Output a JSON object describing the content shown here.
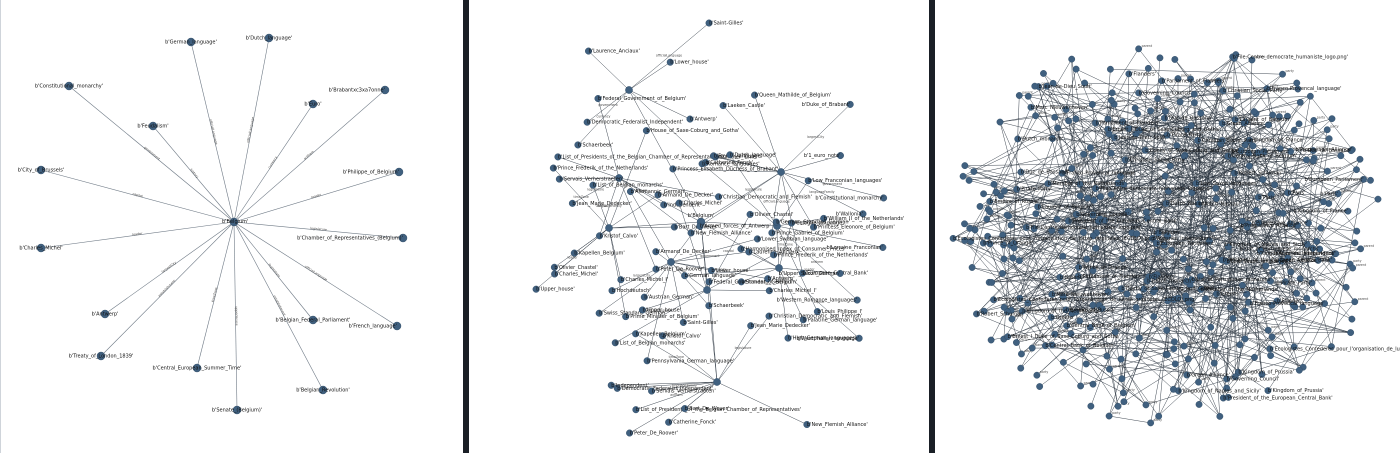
{
  "panels": [
    {
      "name": "panel-graph-depth-1",
      "hub_label": "b'Belgium'",
      "nodes": [
        "b'German_language'",
        "b'Dutch_language'",
        "b'Constitutional_monarchy'",
        "b'Brabantxc3xa7onne'",
        "b'Euro'",
        "b'Feudalism'",
        "b'City_of_Brussels'",
        "b'Philippe_of_Belgium'",
        "b'Chamber_of_Representatives_(Belgium)'",
        "b'Charles_Michel'",
        "b'Antwerp'",
        "b'Belgian_Federal_Parliament'",
        "b'French_language'",
        "b'Treaty_of_London_1839'",
        "b'Central_European_Summer_Time'",
        "b'Belgian_Revolution'",
        "b'Senate_(Belgium)'"
      ],
      "edge_labels": [
        "officialLanguage",
        "officialLanguage",
        "government",
        "anthem",
        "currency",
        "history",
        "capital",
        "leader",
        "legislature",
        "leader",
        "largestCity",
        "legislature",
        "officialLanguage",
        "establishment",
        "timeZone",
        "establishment",
        "upperHouse"
      ]
    },
    {
      "name": "panel-graph-depth-2",
      "hub_label": "b'Belgium'",
      "nodes": [
        "b'Saint-Gilles'",
        "b'Antwerp'",
        "b'Lower_house'",
        "b'Schaerbeek'",
        "b'Laurence_Anciaux'",
        "b'Catherine_Fonck'",
        "b'Democratic_Federalist_Independent'",
        "b'Servais_Verherstraeten'",
        "b'New_Flemish_Alliance'",
        "b'Kristof_Calvo'",
        "b'Christian_Democratic_and_Flemish'",
        "b'Peter_De_Roover'",
        "b'Jean_Marie_Dedecker'",
        "b'List_of_Presidents_of_the_Belgian_Chamber_of_Representatives'",
        "b'Federal_Government_of_Belgium'",
        "b'Independent'",
        "b'Kapellen_Belgium'",
        "b'Bart_De_Wever'",
        "b'Prince_Frederik_of_the_Netherlands'",
        "b'Armand_De_Decker'",
        "b'Charles_Michel'",
        "b'Upper_house'",
        "b'Olivier_Chastel'",
        "b'Charles_Michel_I'",
        "b'List_of_Belgian_monarchs'",
        "b'Prime_Minister_of_Belgium'",
        "b'House_of_Saxe-Coburg_and_Gotha'",
        "b'Duke_of_Brabant'",
        "b'Queen_Mathilde_of_Belgium'",
        "b'Princess_Elisabeth_Duchess_of_Brabant'",
        "b'Prince_Gabriel_of_Belgium'",
        "b'Princess_Eleonore_of_Belgium'",
        "b'Laeken_Castle'",
        "b'European_Central_Bank'",
        "b'1_euro_note'",
        "b'Summer_Time'",
        "b'Constitutional_monarchy'",
        "b'Armed_forces_of_Antwerp'",
        "b'French_language'",
        "b'Wallonia'",
        "b'Low_Franconian_languages'",
        "b'William_II_of_the_Netherlands'",
        "b'Dutch_language'",
        "b'Romance_languages'",
        "b'Louis_Philippe_I'",
        "b'Western_Romance_languages'",
        "b'Lorraine_Franconian'",
        "b'German_language'",
        "b'Cologne_language'",
        "b'Standard_German'",
        "b'High_German_languages'",
        "b'Upper_Saxon_German'",
        "b'Palatine_German_language'",
        "b'German_Standard_German'",
        "b'Westphalian_language'",
        "b'Harmonised_Index_of_Consumer_Prices'",
        "b'Austrian_German'",
        "b'Hochdeutsch'",
        "b'Lower_Swabian_language'",
        "b'Swiss_Standard_German'",
        "b'Pennsylvania_German_language'",
        "b'Alemannic_German'"
      ],
      "edge_labels": [
        "officialLanguage",
        "leader",
        "legislature",
        "currency",
        "capital",
        "anthem",
        "government",
        "largestCity",
        "timeZone",
        "languageFamily"
      ]
    },
    {
      "name": "panel-graph-depth-3",
      "hub_label": "b'Belgium'",
      "nodes": [
        "b'Franco-Provencal_language'",
        "b'Flanders'",
        "b'Paris'",
        "b'Greens'",
        "b'Pirate_Party'",
        "b'Ecologistes_Confederes_pour_l'organisation_de_luttes_originales_(ECOLO).png'",
        "b'Green_Alliance'",
        "b'File:Centre_democrate_humaniste_logo.png'",
        "b'Christian_Social_Party'",
        "b'Parliament_of_Flanders'",
        "b'President_of_the_European_Central_Bank'",
        "b'Governing_Council'",
        "b'European_Parliament'",
        "b'Progressive_Alliance'",
        "b'Central_Bank_of_Belgium'",
        "b'Duc_de_Bassano'",
        "b'Jean-de-Dieu_Soult'",
        "b'Kingdom_of_France'",
        "b'Member_of_the_Netherlands'",
        "b'Kingdom_of_Naples_and_Sicily'",
        "b'Kingdom_of_the_Netherlands'",
        "b'Prince_of_Orange'",
        "b'Duchy_of_Saxe-Coburg_and_Gotha'",
        "b'Kingdom_of_Prussia'",
        "b'List_of_Portuguese_monarchs'",
        "b'Ernest_I_Duke_of_Saxe-Coburg_and_Gotha'",
        "b'Low_Saxon_languages'",
        "b'Dutch_monarch'",
        "b'Dutch_Nassau'",
        "b'Avesnes_Independent'",
        "b'Laurent_of_Belgium'",
        "b'Marc_Nieuwenhoven'",
        "b'Robert_Schuman'",
        "b'Empire_of_Russia'"
      ],
      "edge_labels": [
        "party",
        "predecessor",
        "successor",
        "spouse",
        "parent",
        "birthPlace",
        "member",
        "officeholder"
      ]
    }
  ]
}
